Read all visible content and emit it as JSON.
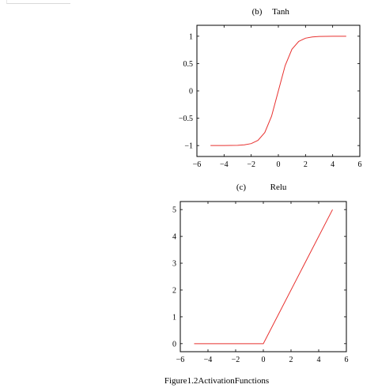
{
  "caption": "Figure1.2ActivationFunctions",
  "chart_data": [
    {
      "type": "line",
      "label": "(b)",
      "title": "Tanh",
      "xlim": [
        -6,
        6
      ],
      "ylim": [
        -1.2,
        1.2
      ],
      "xticks": [
        -6,
        -4,
        -2,
        0,
        2,
        4,
        6
      ],
      "xtick_labels": [
        "−6",
        "−4",
        "−2",
        "0",
        "2",
        "4",
        "6"
      ],
      "yticks": [
        -1,
        -0.5,
        0,
        0.5,
        1
      ],
      "ytick_labels": [
        "−1",
        "−0.5",
        "0",
        "0.5",
        "1"
      ],
      "grid": false,
      "series": [
        {
          "color": "#e8312f",
          "x": [
            -5,
            -4.5,
            -4,
            -3.5,
            -3,
            -2.5,
            -2,
            -1.5,
            -1,
            -0.5,
            0,
            0.5,
            1,
            1.5,
            2,
            2.5,
            3,
            3.5,
            4,
            4.5,
            5
          ],
          "y": [
            -1,
            -1,
            -0.999,
            -0.998,
            -0.995,
            -0.987,
            -0.964,
            -0.905,
            -0.762,
            -0.462,
            0,
            0.462,
            0.762,
            0.905,
            0.964,
            0.987,
            0.995,
            0.998,
            0.999,
            1,
            1
          ]
        }
      ]
    },
    {
      "type": "line",
      "label": "(c)",
      "title": "Relu",
      "xlim": [
        -6,
        6
      ],
      "ylim": [
        -0.3,
        5.3
      ],
      "xticks": [
        -6,
        -4,
        -2,
        0,
        2,
        4,
        6
      ],
      "xtick_labels": [
        "−6",
        "−4",
        "−2",
        "0",
        "2",
        "4",
        "6"
      ],
      "yticks": [
        0,
        1,
        2,
        3,
        4,
        5
      ],
      "ytick_labels": [
        "0",
        "1",
        "2",
        "3",
        "4",
        "5"
      ],
      "grid": false,
      "series": [
        {
          "color": "#e8312f",
          "x": [
            -5,
            0,
            5
          ],
          "y": [
            0,
            0,
            5
          ]
        }
      ]
    }
  ]
}
